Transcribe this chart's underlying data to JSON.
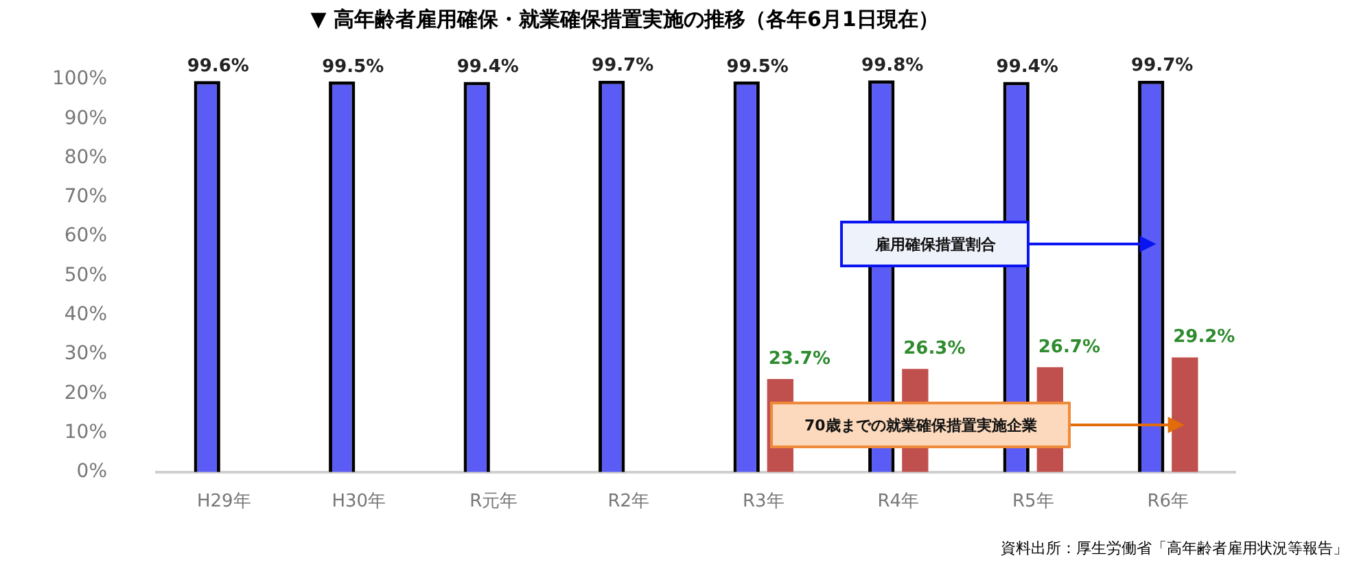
{
  "chart_data": {
    "type": "bar",
    "title": "▼ 高年齢者雇用確保・就業確保措置実施の推移（各年6月1日現在）",
    "categories": [
      "H29年",
      "H30年",
      "R元年",
      "R2年",
      "R3年",
      "R4年",
      "R5年",
      "R6年"
    ],
    "series": [
      {
        "name": "雇用確保措置割合",
        "color": "#5b5bf5",
        "values": [
          99.6,
          99.5,
          99.4,
          99.7,
          99.5,
          99.8,
          99.4,
          99.7
        ],
        "value_labels": [
          "99.6%",
          "99.5%",
          "99.4%",
          "99.7%",
          "99.5%",
          "99.8%",
          "99.4%",
          "99.7%"
        ]
      },
      {
        "name": "70歳までの就業確保措置実施企業",
        "color": "#c0504d",
        "values": [
          null,
          null,
          null,
          null,
          23.7,
          26.3,
          26.7,
          29.2
        ],
        "value_labels": [
          null,
          null,
          null,
          null,
          "23.7%",
          "26.3%",
          "26.7%",
          "29.2%"
        ]
      }
    ],
    "ylim": [
      0,
      100
    ],
    "yticks": [
      {
        "value": 0,
        "label": "0%"
      },
      {
        "value": 10,
        "label": "10%"
      },
      {
        "value": 20,
        "label": "20%"
      },
      {
        "value": 30,
        "label": "30%"
      },
      {
        "value": 40,
        "label": "40%"
      },
      {
        "value": 50,
        "label": "50%"
      },
      {
        "value": 60,
        "label": "60%"
      },
      {
        "value": 70,
        "label": "70%"
      },
      {
        "value": 80,
        "label": "80%"
      },
      {
        "value": 90,
        "label": "90%"
      },
      {
        "value": 100,
        "label": "100%"
      }
    ],
    "annotations": [
      "資料出所：厚生労働省「高年齢者雇用状況等報告」"
    ]
  }
}
